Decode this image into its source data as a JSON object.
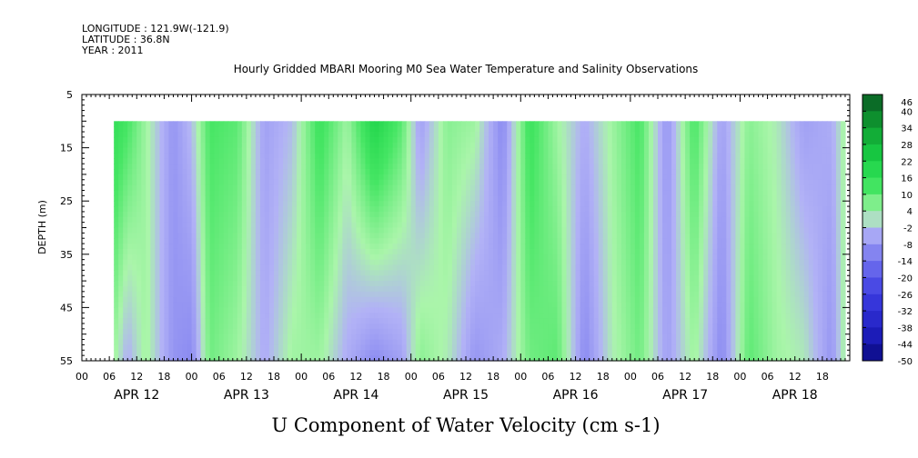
{
  "header": {
    "longitude": "LONGITUDE : 121.9W(-121.9)",
    "latitude": "LATITUDE : 36.8N",
    "year": "YEAR : 2011"
  },
  "chart_data": {
    "type": "heatmap",
    "title": "Hourly Gridded MBARI Mooring M0 Sea Water Temperature and Salinity Observations",
    "xlabel": "U Component of Water Velocity (cm s-1)",
    "ylabel": "DEPTH (m)",
    "x_hour_ticks": [
      "00",
      "06",
      "12",
      "18",
      "00",
      "06",
      "12",
      "18",
      "00",
      "06",
      "12",
      "18",
      "00",
      "06",
      "12",
      "18",
      "00",
      "06",
      "12",
      "18",
      "00",
      "06",
      "12",
      "18",
      "00",
      "06",
      "12",
      "18"
    ],
    "x_day_labels": [
      "APR 12",
      "APR 13",
      "APR 14",
      "APR 15",
      "APR 16",
      "APR 17",
      "APR 18"
    ],
    "x_range_hours": [
      0,
      168
    ],
    "data_x_range_hours": [
      7,
      167
    ],
    "y_ticks": [
      "5",
      "15",
      "25",
      "35",
      "45",
      "55"
    ],
    "y_range": [
      5,
      55
    ],
    "y_inverted": true,
    "data_depth_range": [
      10,
      55
    ],
    "colorbar": {
      "labels": [
        "46",
        "40",
        "34",
        "28",
        "22",
        "16",
        "10",
        "4",
        "-2",
        "-8",
        "-14",
        "-20",
        "-26",
        "-32",
        "-38",
        "-44",
        "-50"
      ],
      "range": [
        -50,
        46
      ]
    },
    "colors": {
      "strong_positive": "#0b7a2a",
      "positive": "#2ee85a",
      "weak_positive": "#a6f5a6",
      "weak_negative": "#b4b4f7",
      "negative": "#7d7df0",
      "strong_negative": "#0a0a80"
    },
    "approx_u_velocity_by_hour": [
      {
        "hour": 7,
        "surface": 16,
        "bottom": 4
      },
      {
        "hour": 10,
        "surface": 12,
        "bottom": -4
      },
      {
        "hour": 14,
        "surface": 4,
        "bottom": 4
      },
      {
        "hour": 20,
        "surface": -8,
        "bottom": -8
      },
      {
        "hour": 24,
        "surface": -2,
        "bottom": -10
      },
      {
        "hour": 28,
        "surface": 12,
        "bottom": 8
      },
      {
        "hour": 34,
        "surface": 10,
        "bottom": 4
      },
      {
        "hour": 40,
        "surface": -6,
        "bottom": -4
      },
      {
        "hour": 46,
        "surface": -2,
        "bottom": 4
      },
      {
        "hour": 52,
        "surface": 14,
        "bottom": 4
      },
      {
        "hour": 58,
        "surface": 4,
        "bottom": -4
      },
      {
        "hour": 64,
        "surface": 20,
        "bottom": -10
      },
      {
        "hour": 70,
        "surface": 10,
        "bottom": -6
      },
      {
        "hour": 74,
        "surface": -6,
        "bottom": 6
      },
      {
        "hour": 80,
        "surface": 6,
        "bottom": 2
      },
      {
        "hour": 86,
        "surface": 4,
        "bottom": -8
      },
      {
        "hour": 92,
        "surface": -10,
        "bottom": -4
      },
      {
        "hour": 98,
        "surface": 14,
        "bottom": 8
      },
      {
        "hour": 104,
        "surface": 4,
        "bottom": 10
      },
      {
        "hour": 110,
        "surface": -4,
        "bottom": -10
      },
      {
        "hour": 116,
        "surface": 4,
        "bottom": 2
      },
      {
        "hour": 122,
        "surface": 12,
        "bottom": 8
      },
      {
        "hour": 128,
        "surface": -8,
        "bottom": -6
      },
      {
        "hour": 134,
        "surface": 12,
        "bottom": 4
      },
      {
        "hour": 140,
        "surface": -6,
        "bottom": -10
      },
      {
        "hour": 146,
        "surface": 6,
        "bottom": 10
      },
      {
        "hour": 152,
        "surface": 2,
        "bottom": 4
      },
      {
        "hour": 158,
        "surface": -6,
        "bottom": 2
      },
      {
        "hour": 164,
        "surface": -4,
        "bottom": -8
      },
      {
        "hour": 167,
        "surface": 4,
        "bottom": 4
      }
    ]
  }
}
